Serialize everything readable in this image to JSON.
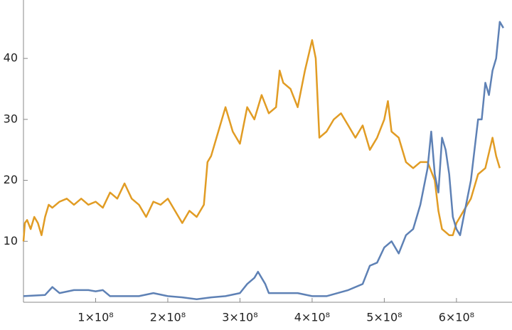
{
  "chart_data": {
    "type": "line",
    "xlim": [
      0,
      675000000
    ],
    "ylim": [
      0,
      49
    ],
    "xticks": [
      {
        "value": 100000000,
        "label": "1×10⁸"
      },
      {
        "value": 200000000,
        "label": "2×10⁸"
      },
      {
        "value": 300000000,
        "label": "3×10⁸"
      },
      {
        "value": 400000000,
        "label": "4×10⁸"
      },
      {
        "value": 500000000,
        "label": "5×10⁸"
      },
      {
        "value": 600000000,
        "label": "6×10⁸"
      }
    ],
    "yticks": [
      10,
      20,
      30,
      40
    ],
    "series": [
      {
        "color": "#e19c24",
        "x": [
          0,
          2000000,
          5000000,
          10000000,
          15000000,
          20000000,
          25000000,
          30000000,
          35000000,
          40000000,
          50000000,
          60000000,
          70000000,
          80000000,
          90000000,
          100000000,
          110000000,
          120000000,
          130000000,
          140000000,
          150000000,
          160000000,
          170000000,
          180000000,
          190000000,
          200000000,
          210000000,
          220000000,
          230000000,
          240000000,
          250000000,
          255000000,
          260000000,
          270000000,
          280000000,
          290000000,
          300000000,
          310000000,
          320000000,
          330000000,
          340000000,
          350000000,
          355000000,
          360000000,
          370000000,
          380000000,
          390000000,
          400000000,
          405000000,
          410000000,
          420000000,
          430000000,
          440000000,
          450000000,
          460000000,
          470000000,
          480000000,
          490000000,
          500000000,
          505000000,
          510000000,
          520000000,
          530000000,
          540000000,
          550000000,
          560000000,
          570000000,
          575000000,
          580000000,
          590000000,
          595000000,
          600000000,
          605000000,
          610000000,
          620000000,
          630000000,
          640000000,
          650000000,
          655000000,
          660000000
        ],
        "values": [
          10,
          13,
          13.5,
          12,
          14,
          13,
          11,
          14,
          16,
          15.5,
          16.5,
          17,
          16,
          17,
          16,
          16.5,
          15.5,
          18,
          17,
          19.5,
          17,
          16,
          14,
          16.5,
          16,
          17,
          15,
          13,
          15,
          14,
          16,
          23,
          24,
          28,
          32,
          28,
          26,
          32,
          30,
          34,
          31,
          32,
          38,
          36,
          35,
          32,
          38,
          43,
          40,
          27,
          28,
          30,
          31,
          29,
          27,
          29,
          25,
          27,
          30,
          33,
          28,
          27,
          23,
          22,
          23,
          23,
          20,
          15,
          12,
          11,
          11,
          13,
          14,
          15,
          17,
          21,
          22,
          27,
          24,
          22
        ]
      },
      {
        "color": "#5e81b5",
        "x": [
          0,
          30000000,
          40000000,
          50000000,
          70000000,
          90000000,
          100000000,
          110000000,
          120000000,
          140000000,
          160000000,
          180000000,
          200000000,
          220000000,
          240000000,
          260000000,
          280000000,
          300000000,
          310000000,
          320000000,
          325000000,
          335000000,
          340000000,
          350000000,
          380000000,
          400000000,
          420000000,
          450000000,
          470000000,
          480000000,
          490000000,
          500000000,
          510000000,
          520000000,
          530000000,
          540000000,
          550000000,
          560000000,
          565000000,
          570000000,
          575000000,
          580000000,
          585000000,
          590000000,
          595000000,
          600000000,
          605000000,
          610000000,
          620000000,
          630000000,
          635000000,
          640000000,
          645000000,
          650000000,
          655000000,
          660000000,
          665000000
        ],
        "values": [
          1,
          1.2,
          2.5,
          1.5,
          2,
          2,
          1.8,
          2,
          1,
          1,
          1,
          1.5,
          1,
          0.8,
          0.5,
          0.8,
          1,
          1.5,
          3,
          4,
          5,
          3,
          1.5,
          1.5,
          1.5,
          1,
          1,
          2,
          3,
          6,
          6.5,
          9,
          10,
          8,
          11,
          12,
          16,
          22,
          28,
          21,
          18,
          27,
          25,
          21,
          14,
          12,
          11,
          14,
          20,
          30,
          30,
          36,
          34,
          38,
          40,
          46,
          45
        ]
      }
    ]
  }
}
